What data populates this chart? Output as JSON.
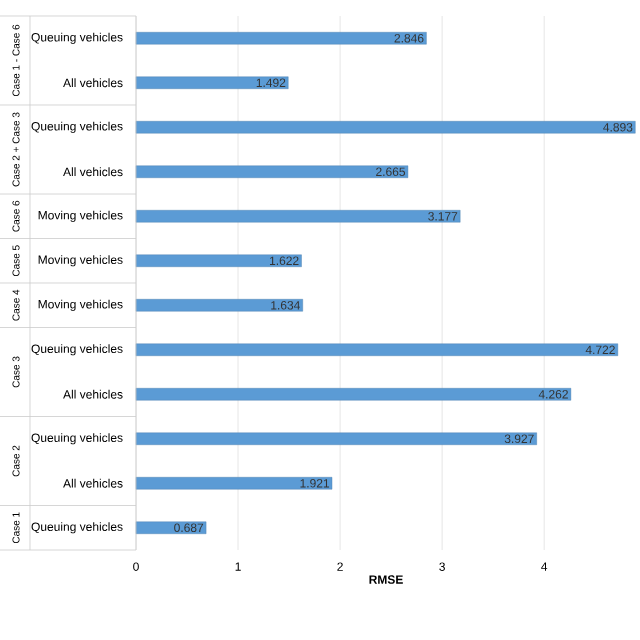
{
  "chart_data": {
    "type": "bar",
    "orientation": "horizontal",
    "xlabel": "RMSE",
    "categories": [
      "Queuing vehicles",
      "All vehicles",
      "Queuing vehicles",
      "All vehicles",
      "Moving vehicles",
      "Moving vehicles",
      "Moving vehicles",
      "Queuing vehicles",
      "All vehicles",
      "Queuing vehicles",
      "All vehicles",
      "Queuing vehicles"
    ],
    "values": [
      2.846,
      1.492,
      4.893,
      2.665,
      3.177,
      1.622,
      1.634,
      4.722,
      4.262,
      3.927,
      1.921,
      0.687
    ],
    "color": "#5b9bd5",
    "xlim": [
      0,
      4.9
    ],
    "xticks": [
      0,
      1,
      2,
      3,
      4
    ],
    "grid": "x",
    "data_labels": true,
    "annotations": [
      "Case 1 - Case 6",
      "Case 2 + Case 3",
      "Case 6",
      "Case 5",
      "Case 4",
      "Case 3",
      "Case 2",
      "Case 1"
    ]
  }
}
